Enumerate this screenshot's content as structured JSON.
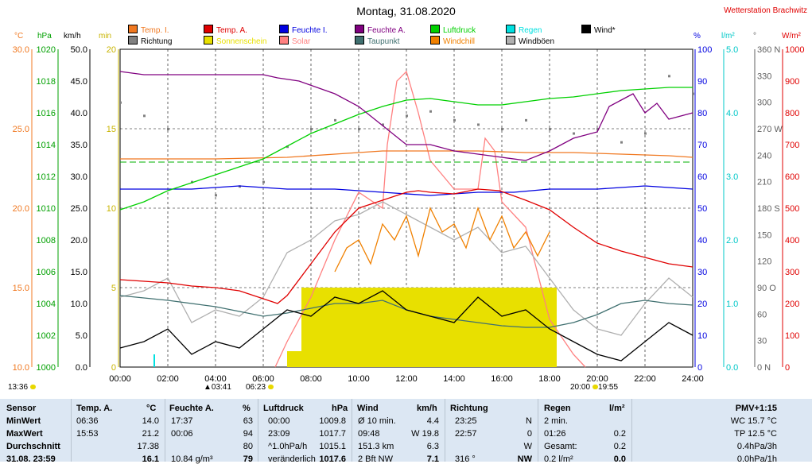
{
  "title": "Montag, 31.08.2020",
  "station": "Wetterstation Brachwitz",
  "legend": [
    {
      "label": "Temp. I.",
      "color": "#f07820"
    },
    {
      "label": "Temp. A.",
      "color": "#e00000"
    },
    {
      "label": "Feuchte I.",
      "color": "#0000e0"
    },
    {
      "label": "Feuchte A.",
      "color": "#800080"
    },
    {
      "label": "Luftdruck",
      "color": "#00d000"
    },
    {
      "label": "Regen",
      "color": "#00e0e0"
    },
    {
      "label": "Wind*",
      "color": "#000000"
    },
    {
      "label": "Richtung",
      "color": "#808080"
    },
    {
      "label": "Sonnenschein",
      "color": "#e8e000"
    },
    {
      "label": "Solar",
      "color": "#ff8080"
    },
    {
      "label": "Taupunkt",
      "color": "#407070"
    },
    {
      "label": "Windchill",
      "color": "#f08000"
    },
    {
      "label": "Windböen",
      "color": "#b0b0b0"
    }
  ],
  "units": {
    "temp": "°C",
    "pressure": "hPa",
    "wind": "km/h",
    "sun": "min",
    "humidity": "%",
    "rain": "l/m²",
    "direction": "°",
    "solar": "W/m²"
  },
  "chart_data": {
    "type": "line",
    "title": "Montag, 31.08.2020",
    "x_ticks": [
      "00:00",
      "02:00",
      "04:00",
      "06:00",
      "08:00",
      "10:00",
      "12:00",
      "14:00",
      "16:00",
      "18:00",
      "20:00",
      "22:00",
      "24:00"
    ],
    "axes": {
      "temp": {
        "range": [
          10.0,
          30.0
        ],
        "ticks": [
          "30.0",
          "25.0",
          "20.0",
          "15.0",
          "10.0"
        ],
        "color": "#f07820"
      },
      "pressure": {
        "range": [
          1000,
          1020
        ],
        "ticks": [
          "1020",
          "1018",
          "1016",
          "1014",
          "1012",
          "1010",
          "1008",
          "1006",
          "1004",
          "1002",
          "1000"
        ],
        "color": "#00a000"
      },
      "wind": {
        "range": [
          0,
          50
        ],
        "ticks": [
          "50.0",
          "45.0",
          "40.0",
          "35.0",
          "30.0",
          "25.0",
          "20.0",
          "15.0",
          "10.0",
          "5.0",
          "0.0"
        ],
        "color": "#000000"
      },
      "sun": {
        "range": [
          0,
          20
        ],
        "ticks": [
          "20",
          "15",
          "10",
          "5",
          "0"
        ],
        "color": "#c8b400"
      },
      "humidity": {
        "range": [
          0,
          100
        ],
        "ticks": [
          "100",
          "90",
          "80",
          "70",
          "60",
          "50",
          "40",
          "30",
          "20",
          "10",
          "0"
        ],
        "color": "#0000e0"
      },
      "rain": {
        "range": [
          0,
          5
        ],
        "ticks": [
          "5.0",
          "4.0",
          "3.0",
          "2.0",
          "1.0",
          "0.0"
        ],
        "color": "#00c8c8"
      },
      "direction": {
        "range": [
          0,
          360
        ],
        "ticks": [
          "360 N",
          "330",
          "300",
          "270 W",
          "240",
          "210",
          "180 S",
          "150",
          "120",
          "90 O",
          "60",
          "30",
          "0 N"
        ],
        "color": "#606060"
      },
      "solar": {
        "range": [
          0,
          1000
        ],
        "ticks": [
          "1000",
          "900",
          "800",
          "700",
          "600",
          "500",
          "400",
          "300",
          "200",
          "100",
          "0"
        ],
        "color": "#e00000"
      }
    },
    "series": [
      {
        "name": "Temp. I.",
        "axis": "temp",
        "hours": [
          0,
          4,
          7,
          9,
          11,
          13,
          15,
          17,
          19,
          21,
          23,
          24
        ],
        "values": [
          23.1,
          23.1,
          23.2,
          23.4,
          23.6,
          23.6,
          23.6,
          23.5,
          23.5,
          23.4,
          23.3,
          23.2
        ]
      },
      {
        "name": "Temp. A.",
        "axis": "temp",
        "hours": [
          0,
          1,
          2,
          3,
          4,
          5,
          6,
          6.6,
          7,
          8,
          9,
          10,
          11,
          12,
          12.5,
          13,
          14,
          15,
          15.9,
          17,
          18,
          19,
          20,
          21,
          22,
          23,
          24
        ],
        "values": [
          15.5,
          15.4,
          15.3,
          15.1,
          15.0,
          14.8,
          14.3,
          14.0,
          14.5,
          16.5,
          18.5,
          20.0,
          20.5,
          21.0,
          21.1,
          21.0,
          20.9,
          21.2,
          21.1,
          20.5,
          19.9,
          18.8,
          17.8,
          17.3,
          16.9,
          16.5,
          16.3
        ]
      },
      {
        "name": "Feuchte I.",
        "axis": "humidity",
        "hours": [
          0,
          3,
          5,
          7,
          9,
          11,
          13,
          15,
          16.5,
          18,
          20,
          22,
          24
        ],
        "values": [
          56,
          56,
          57,
          56,
          56,
          55,
          54,
          55,
          55,
          56,
          56,
          57,
          56
        ]
      },
      {
        "name": "Feuchte A.",
        "axis": "humidity",
        "hours": [
          0,
          1,
          2,
          4,
          6,
          6.6,
          7.5,
          9,
          10,
          11,
          12,
          13,
          14,
          15,
          16,
          17,
          18,
          19,
          20,
          20.5,
          21,
          21.5,
          22,
          22.5,
          23,
          24
        ],
        "values": [
          93,
          92,
          92,
          92,
          92,
          91,
          90,
          86,
          82,
          76,
          70,
          70,
          68,
          67,
          66,
          65,
          68,
          72,
          74,
          82,
          84,
          86,
          80,
          83,
          78,
          80
        ]
      },
      {
        "name": "Luftdruck",
        "axis": "pressure",
        "hours": [
          0,
          1,
          2,
          3,
          4,
          5,
          6,
          7,
          8,
          9,
          10,
          11,
          12,
          13,
          14,
          15,
          16,
          17,
          18,
          19,
          20,
          21,
          22,
          23,
          24
        ],
        "values": [
          1009.9,
          1010.4,
          1011.1,
          1011.6,
          1012.1,
          1012.6,
          1013.1,
          1013.9,
          1014.7,
          1015.3,
          1015.9,
          1016.4,
          1016.8,
          1016.9,
          1016.7,
          1016.5,
          1016.5,
          1016.7,
          1016.9,
          1017.0,
          1017.2,
          1017.4,
          1017.5,
          1017.6,
          1017.6
        ]
      },
      {
        "name": "Taupunkt",
        "axis": "temp",
        "hours": [
          0,
          2,
          4,
          6,
          7,
          8,
          9,
          10,
          11,
          12,
          13,
          14,
          15,
          16,
          17,
          18,
          19,
          20,
          21,
          22,
          23,
          24
        ],
        "values": [
          14.5,
          14.2,
          13.8,
          13.2,
          13.4,
          13.7,
          14.0,
          14.0,
          14.2,
          13.6,
          13.2,
          13.0,
          12.8,
          12.6,
          12.5,
          12.5,
          12.8,
          13.3,
          14.0,
          14.2,
          14.0,
          13.9
        ]
      },
      {
        "name": "Wind*",
        "axis": "wind",
        "hours": [
          0,
          1,
          2,
          3,
          4,
          5,
          6,
          7,
          8,
          9,
          10,
          11,
          12,
          13,
          14,
          15,
          16,
          17,
          18,
          19,
          20,
          21,
          22,
          23,
          24
        ],
        "values": [
          3,
          4,
          6,
          2,
          4,
          3,
          6,
          9,
          8,
          11,
          10,
          12,
          9,
          8,
          7,
          11,
          8,
          9,
          6,
          4,
          2,
          1,
          4,
          7,
          5
        ]
      },
      {
        "name": "Windböen",
        "axis": "wind",
        "hours": [
          0,
          1,
          2,
          3,
          4,
          5,
          6,
          7,
          8,
          9,
          10,
          11,
          12,
          13,
          14,
          15,
          16,
          17,
          18,
          19,
          20,
          21,
          22,
          23,
          24
        ],
        "values": [
          11,
          12,
          14,
          7,
          9,
          8,
          11,
          18,
          20,
          23,
          24,
          26,
          24,
          22,
          20,
          22,
          18,
          19,
          14,
          9,
          6,
          5,
          10,
          14,
          11
        ]
      },
      {
        "name": "Windchill",
        "axis": "temp",
        "hours": [
          9,
          9.5,
          10,
          10.5,
          11,
          11.5,
          12,
          12.5,
          13,
          13.5,
          14,
          14.5,
          15,
          15.5,
          16,
          16.5,
          17,
          17.5,
          18
        ],
        "values": [
          16.0,
          17.5,
          18.0,
          16.5,
          19.0,
          18.0,
          19.5,
          17.0,
          20.0,
          18.5,
          19.0,
          17.5,
          20.0,
          18.0,
          19.5,
          17.5,
          18.5,
          17.0,
          18.5
        ]
      },
      {
        "name": "Solar",
        "axis": "solar",
        "hours": [
          6.5,
          7,
          8,
          9,
          10,
          11,
          11.2,
          11.6,
          12,
          12.5,
          13,
          14,
          15,
          15.3,
          15.7,
          16,
          17,
          18,
          19,
          19.5
        ],
        "values": [
          0,
          80,
          220,
          400,
          550,
          500,
          700,
          900,
          930,
          800,
          650,
          560,
          560,
          720,
          680,
          520,
          440,
          150,
          40,
          0
        ]
      },
      {
        "name": "Richtung",
        "axis": "direction",
        "hours": [
          0,
          1,
          2,
          3,
          4,
          5,
          6,
          7,
          8,
          9,
          10,
          11,
          12,
          13,
          14,
          15,
          16,
          17,
          18,
          19,
          20,
          21,
          22,
          23,
          24
        ],
        "values": [
          300,
          285,
          270,
          210,
          195,
          205,
          210,
          250,
          270,
          280,
          270,
          275,
          285,
          290,
          280,
          275,
          270,
          280,
          270,
          265,
          270,
          255,
          265,
          330,
          310
        ]
      },
      {
        "name": "Sonnenschein",
        "axis": "sun",
        "hours": [
          7.0,
          7.6,
          8,
          9,
          10,
          11,
          12,
          13,
          14,
          15,
          16,
          17,
          18,
          18.3
        ],
        "values": [
          1,
          5,
          5,
          5,
          5,
          5,
          5,
          5,
          5,
          5,
          5,
          5,
          5,
          0
        ]
      },
      {
        "name": "Regen",
        "axis": "rain",
        "hours": [
          1.4
        ],
        "values": [
          0.2
        ]
      }
    ],
    "markers": [
      {
        "label": "13:36",
        "position": "left"
      },
      {
        "label": "03:41"
      },
      {
        "label": "06:23"
      },
      {
        "label": "20:00"
      },
      {
        "label": "19:55"
      }
    ]
  },
  "table": {
    "headers": {
      "sensor": "Sensor",
      "temp": "Temp. A.",
      "temp_unit": "°C",
      "hum": "Feuchte A.",
      "hum_unit": "%",
      "press": "Luftdruck",
      "press_unit": "hPa",
      "wind": "Wind",
      "wind_unit": "km/h",
      "dir": "Richtung",
      "rain": "Regen",
      "rain_unit": "l/m²",
      "pmv": "PMV+1:15"
    },
    "row_labels": [
      "MinWert",
      "MaxWert",
      "Durchschnitt",
      "31.08. 23:59"
    ],
    "temp": [
      [
        "06:36",
        "14.0"
      ],
      [
        "15:53",
        "21.2"
      ],
      [
        "",
        "17.38"
      ],
      [
        "",
        "16.1"
      ]
    ],
    "hum": [
      [
        "17:37",
        "63"
      ],
      [
        "00:06",
        "94"
      ],
      [
        "",
        "80"
      ],
      [
        "10.84 g/m³",
        "79"
      ]
    ],
    "press": [
      [
        "00:00",
        "1009.8"
      ],
      [
        "23:09",
        "1017.7"
      ],
      [
        "^1.0hPa/h",
        "1015.1"
      ],
      [
        "veränderlich",
        "1017.6"
      ]
    ],
    "wind": [
      [
        "Ø 10 min.",
        "4.4"
      ],
      [
        "09:48",
        "W 19.8"
      ],
      [
        "151.3 km",
        "6.3"
      ],
      [
        "2 Bft NW",
        "7.1"
      ]
    ],
    "dir": [
      [
        "23:25",
        "N"
      ],
      [
        "22:57",
        "0"
      ],
      [
        "",
        "W"
      ],
      [
        "316 °",
        "NW"
      ]
    ],
    "rain": [
      [
        "2 min.",
        ""
      ],
      [
        "01:26",
        "0.2"
      ],
      [
        "Gesamt:",
        "0.2"
      ],
      [
        "0.2 l/m²",
        "0.0"
      ]
    ],
    "pmv": [
      "WC 15.7 °C",
      "TP 12.5 °C",
      "0.4hPa/3h",
      "0.0hPa/1h"
    ]
  }
}
